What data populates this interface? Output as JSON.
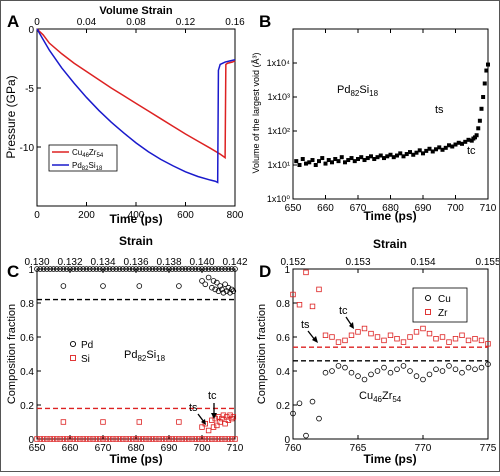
{
  "colors": {
    "red": "#dd2222",
    "blue": "#1a1acc",
    "black": "#000000"
  },
  "chart_data": [
    {
      "panel": "A",
      "type": "line",
      "xlabel": "Time (ps)",
      "ylabel": "Pressure (GPa)",
      "top_axis_label": "Volume Strain",
      "xlim": [
        0,
        800
      ],
      "ylim": [
        -15,
        0
      ],
      "xticks": [
        "0",
        "200",
        "400",
        "600",
        "800"
      ],
      "yticks": [
        "0",
        "-5",
        "-10"
      ],
      "top_ticks": [
        "0",
        "0.04",
        "0.08",
        "0.12",
        "0.16"
      ],
      "legend": {
        "placement": "bottom-left",
        "entries": [
          "Cu46Zr54",
          "Pd82Si18"
        ]
      },
      "series": [
        {
          "name": "Cu46Zr54",
          "color": "red",
          "x": [
            0,
            25,
            50,
            100,
            150,
            200,
            250,
            300,
            350,
            400,
            450,
            500,
            550,
            600,
            650,
            700,
            740,
            760,
            763,
            770,
            790,
            800
          ],
          "y": [
            0,
            -0.5,
            -1.2,
            -2.1,
            -2.9,
            -3.6,
            -4.3,
            -5.0,
            -5.65,
            -6.3,
            -6.95,
            -7.6,
            -8.25,
            -8.9,
            -9.5,
            -10.1,
            -10.6,
            -10.9,
            -3.0,
            -2.9,
            -2.8,
            -2.7
          ]
        },
        {
          "name": "Pd82Si18",
          "color": "blue",
          "x": [
            0,
            25,
            50,
            100,
            150,
            200,
            250,
            300,
            350,
            400,
            450,
            500,
            550,
            600,
            650,
            700,
            720,
            730,
            733,
            740,
            760,
            780,
            800
          ],
          "y": [
            0,
            -0.9,
            -1.8,
            -3.3,
            -4.6,
            -5.8,
            -6.9,
            -7.9,
            -8.8,
            -9.65,
            -10.4,
            -11.05,
            -11.6,
            -12.1,
            -12.5,
            -12.8,
            -12.9,
            -13.0,
            -3.5,
            -3.0,
            -2.8,
            -2.7,
            -2.6
          ]
        }
      ]
    },
    {
      "panel": "B",
      "type": "scatter",
      "xlabel": "Time (ps)",
      "ylabel": "Volume of the largest void (Å³)",
      "ylog": true,
      "xlim": [
        650,
        710
      ],
      "ylim": [
        1,
        100000
      ],
      "xticks": [
        "650",
        "660",
        "670",
        "680",
        "690",
        "700",
        "710"
      ],
      "yticks": [
        "1x10⁰",
        "1x10¹",
        "1x10²",
        "1x10³",
        "1x10⁴"
      ],
      "annotations": [
        "Pd82Si18",
        "ts",
        "tc"
      ],
      "series": [
        {
          "name": "Pd82Si18",
          "color": "black",
          "x": [
            651,
            652,
            653,
            654,
            655,
            656,
            657,
            658,
            659,
            660,
            661,
            662,
            663,
            664,
            665,
            666,
            667,
            668,
            669,
            670,
            671,
            672,
            673,
            674,
            675,
            676,
            677,
            678,
            679,
            680,
            681,
            682,
            683,
            684,
            685,
            686,
            687,
            688,
            689,
            690,
            691,
            692,
            693,
            694,
            695,
            696,
            697,
            698,
            699,
            700,
            701,
            702,
            703,
            704,
            705,
            705.5,
            706,
            706.5,
            707,
            707.5,
            708,
            708.5,
            709,
            709.5,
            710
          ],
          "y": [
            13,
            10,
            15,
            11,
            12,
            14,
            10,
            13,
            16,
            11,
            14,
            12,
            15,
            13,
            17,
            12,
            14,
            16,
            13,
            15,
            17,
            14,
            16,
            18,
            15,
            17,
            19,
            16,
            18,
            20,
            17,
            19,
            22,
            18,
            21,
            24,
            20,
            23,
            27,
            22,
            26,
            30,
            25,
            29,
            33,
            28,
            32,
            38,
            35,
            40,
            45,
            42,
            48,
            55,
            52,
            60,
            65,
            75,
            120,
            200,
            450,
            1000,
            2500,
            6000,
            9000
          ]
        }
      ]
    },
    {
      "panel": "C",
      "type": "scatter",
      "xlabel": "Time (ps)",
      "ylabel": "Composition fraction",
      "top_axis_label": "Strain",
      "xlim": [
        650,
        710
      ],
      "ylim": [
        0,
        1
      ],
      "xticks": [
        "650",
        "660",
        "670",
        "680",
        "690",
        "700",
        "710"
      ],
      "yticks": [
        "0",
        "0.2",
        "0.4",
        "0.6",
        "0.8",
        "1"
      ],
      "top_ticks": [
        "0.130",
        "0.132",
        "0.134",
        "0.136",
        "0.138",
        "0.140",
        "0.142"
      ],
      "reference_lines": [
        {
          "y": 0.82,
          "color": "black"
        },
        {
          "y": 0.18,
          "color": "red"
        }
      ],
      "legend": {
        "placement": "center-left",
        "entries": [
          "Pd",
          "Si"
        ]
      },
      "annotations": [
        "Pd82Si18",
        "ts",
        "tc"
      ],
      "series": [
        {
          "name": "Pd",
          "color": "black",
          "marker": "circle",
          "x": [
            650,
            651,
            652,
            653,
            654,
            655,
            656,
            657,
            658,
            659,
            660,
            661,
            662,
            663,
            664,
            665,
            666,
            667,
            668,
            669,
            670,
            671,
            672,
            673,
            674,
            675,
            676,
            677,
            678,
            679,
            680,
            681,
            682,
            683,
            684,
            685,
            686,
            687,
            688,
            689,
            690,
            691,
            692,
            693,
            694,
            695,
            696,
            697,
            698,
            699,
            700,
            701,
            702,
            703,
            704,
            705,
            706,
            707,
            708,
            709,
            710,
            658,
            670,
            681,
            693,
            700,
            701,
            702,
            703,
            703.5,
            704,
            704.5,
            705,
            705.5,
            706,
            706.5,
            707,
            707.5,
            708,
            708.5,
            709,
            709.5
          ],
          "y": [
            1,
            1,
            1,
            1,
            1,
            1,
            1,
            1,
            1,
            1,
            1,
            1,
            1,
            1,
            1,
            1,
            1,
            1,
            1,
            1,
            1,
            1,
            1,
            1,
            1,
            1,
            1,
            1,
            1,
            1,
            1,
            1,
            1,
            1,
            1,
            1,
            1,
            1,
            1,
            1,
            1,
            1,
            1,
            1,
            1,
            1,
            1,
            1,
            1,
            1,
            1,
            1,
            1,
            1,
            1,
            1,
            1,
            1,
            1,
            1,
            1,
            0.9,
            0.9,
            0.9,
            0.9,
            0.93,
            0.91,
            0.95,
            0.89,
            0.93,
            0.88,
            0.92,
            0.87,
            0.9,
            0.88,
            0.86,
            0.91,
            0.87,
            0.89,
            0.86,
            0.88,
            0.87
          ]
        },
        {
          "name": "Si",
          "color": "red",
          "marker": "square",
          "x": [
            650,
            651,
            652,
            653,
            654,
            655,
            656,
            657,
            658,
            659,
            660,
            661,
            662,
            663,
            664,
            665,
            666,
            667,
            668,
            669,
            670,
            671,
            672,
            673,
            674,
            675,
            676,
            677,
            678,
            679,
            680,
            681,
            682,
            683,
            684,
            685,
            686,
            687,
            688,
            689,
            690,
            691,
            692,
            693,
            694,
            695,
            696,
            697,
            698,
            699,
            700,
            701,
            702,
            703,
            704,
            705,
            706,
            707,
            708,
            709,
            710,
            658,
            670,
            681,
            693,
            700,
            701,
            702,
            703,
            703.5,
            704,
            704.5,
            705,
            705.5,
            706,
            706.5,
            707,
            707.5,
            708,
            708.5,
            709,
            709.5
          ],
          "y": [
            0,
            0,
            0,
            0,
            0,
            0,
            0,
            0,
            0,
            0,
            0,
            0,
            0,
            0,
            0,
            0,
            0,
            0,
            0,
            0,
            0,
            0,
            0,
            0,
            0,
            0,
            0,
            0,
            0,
            0,
            0,
            0,
            0,
            0,
            0,
            0,
            0,
            0,
            0,
            0,
            0,
            0,
            0,
            0,
            0,
            0,
            0,
            0,
            0,
            0,
            0,
            0,
            0,
            0,
            0,
            0,
            0,
            0,
            0,
            0,
            0,
            0.1,
            0.1,
            0.1,
            0.1,
            0.07,
            0.09,
            0.05,
            0.11,
            0.07,
            0.12,
            0.08,
            0.13,
            0.1,
            0.12,
            0.14,
            0.09,
            0.13,
            0.11,
            0.14,
            0.12,
            0.13
          ]
        }
      ]
    },
    {
      "panel": "D",
      "type": "scatter",
      "xlabel": "Time (ps)",
      "ylabel": "Composition fraction",
      "top_axis_label": "Strain",
      "xlim": [
        760,
        775
      ],
      "ylim": [
        0,
        1
      ],
      "xticks": [
        "760",
        "765",
        "770",
        "775"
      ],
      "yticks": [
        "0",
        "0.2",
        "0.4",
        "0.6",
        "0.8",
        "1"
      ],
      "top_ticks": [
        "0.152",
        "0.153",
        "0.154",
        "0.155"
      ],
      "reference_lines": [
        {
          "y": 0.54,
          "color": "red"
        },
        {
          "y": 0.46,
          "color": "black"
        }
      ],
      "legend": {
        "placement": "top-right",
        "entries": [
          "Cu",
          "Zr"
        ]
      },
      "annotations": [
        "Cu46Zr54",
        "ts",
        "tc"
      ],
      "series": [
        {
          "name": "Cu",
          "color": "black",
          "marker": "circle",
          "x": [
            760,
            760.5,
            761,
            761.5,
            762,
            762.5,
            763,
            763.5,
            764,
            764.5,
            765,
            765.5,
            766,
            766.5,
            767,
            767.5,
            768,
            768.5,
            769,
            769.5,
            770,
            770.5,
            771,
            771.5,
            772,
            772.5,
            773,
            773.5,
            774,
            774.5,
            775
          ],
          "y": [
            0.15,
            0.21,
            0.02,
            0.22,
            0.12,
            0.39,
            0.4,
            0.43,
            0.42,
            0.39,
            0.37,
            0.35,
            0.38,
            0.4,
            0.42,
            0.39,
            0.41,
            0.43,
            0.4,
            0.37,
            0.35,
            0.38,
            0.41,
            0.4,
            0.43,
            0.41,
            0.39,
            0.42,
            0.41,
            0.42,
            0.44
          ]
        },
        {
          "name": "Zr",
          "color": "red",
          "marker": "square",
          "x": [
            760,
            760.5,
            761,
            761.5,
            762,
            762.5,
            763,
            763.5,
            764,
            764.5,
            765,
            765.5,
            766,
            766.5,
            767,
            767.5,
            768,
            768.5,
            769,
            769.5,
            770,
            770.5,
            771,
            771.5,
            772,
            772.5,
            773,
            773.5,
            774,
            774.5,
            775
          ],
          "y": [
            0.85,
            0.79,
            0.98,
            0.78,
            0.88,
            0.61,
            0.6,
            0.57,
            0.58,
            0.61,
            0.63,
            0.65,
            0.62,
            0.6,
            0.58,
            0.61,
            0.59,
            0.57,
            0.6,
            0.63,
            0.65,
            0.62,
            0.59,
            0.6,
            0.57,
            0.59,
            0.61,
            0.58,
            0.59,
            0.58,
            0.56
          ]
        }
      ]
    }
  ]
}
